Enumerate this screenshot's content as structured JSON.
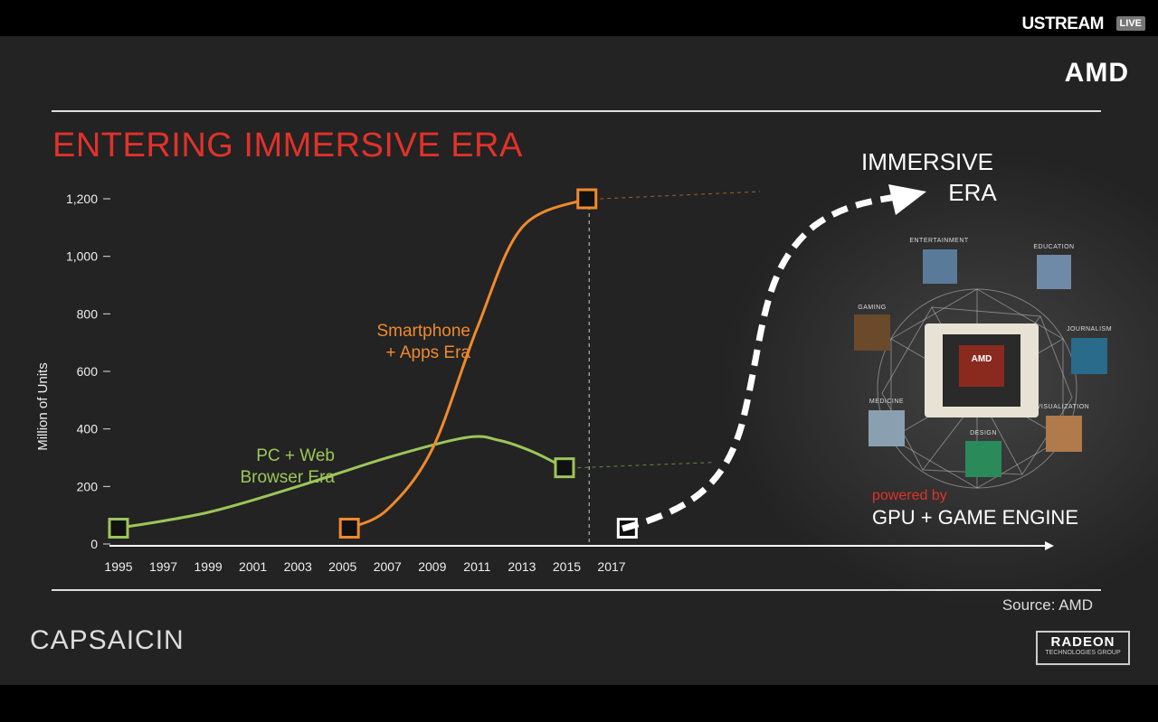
{
  "stream": {
    "brand": "USTREAM",
    "live_badge": "LIVE"
  },
  "slide": {
    "brand": "AMD",
    "title": "ENTERING IMMERSIVE ERA",
    "source": "Source:  AMD",
    "event_logo": "CAPSAICIN",
    "footer_logo": {
      "line1": "RADEON",
      "line2": "TECHNOLOGIES GROUP"
    },
    "immersive_line1": "IMMERSIVE",
    "immersive_line2": "ERA",
    "powered_by": "powered by",
    "engine": "GPU + GAME ENGINE",
    "categories": [
      "ENTERTAINMENT",
      "EDUCATION",
      "GAMING",
      "JOURNALISM",
      "MEDICINE",
      "VISUALIZATION",
      "DESIGN"
    ],
    "chip_label": "AMD"
  },
  "colors": {
    "title_red": "#e0322a",
    "orange": "#f08a2c",
    "green": "#9cc659",
    "white": "#ffffff"
  },
  "chart_data": {
    "type": "line",
    "ylabel": "Million of Units",
    "xlabel": "",
    "ylim": [
      0,
      1200
    ],
    "yticks": [
      0,
      200,
      400,
      600,
      800,
      1000,
      1200
    ],
    "yticks_labels": [
      "0",
      "200",
      "400",
      "600",
      "800",
      "1,000",
      "1,200"
    ],
    "xticks": [
      1995,
      1997,
      1999,
      2001,
      2003,
      2005,
      2007,
      2009,
      2011,
      2013,
      2015,
      2017
    ],
    "xlim": [
      1994.5,
      2018
    ],
    "series": [
      {
        "name": "PC + Web Browser Era",
        "label_line1": "PC + Web",
        "label_line2": "Browser Era",
        "color": "#9cc659",
        "points": [
          [
            1995,
            55
          ],
          [
            1999,
            110
          ],
          [
            2003,
            200
          ],
          [
            2007,
            300
          ],
          [
            2010.5,
            370
          ],
          [
            2012,
            360
          ],
          [
            2013.5,
            320
          ],
          [
            2014.9,
            265
          ]
        ]
      },
      {
        "name": "Smartphone + Apps Era",
        "label_line1": "Smartphone",
        "label_line2": "+ Apps Era",
        "color": "#f08a2c",
        "points": [
          [
            2005.3,
            55
          ],
          [
            2007,
            120
          ],
          [
            2009,
            330
          ],
          [
            2011,
            750
          ],
          [
            2013,
            1100
          ],
          [
            2015.9,
            1200
          ]
        ]
      },
      {
        "name": "Immersive Era",
        "label_line1": "",
        "label_line2": "",
        "color": "#ffffff",
        "points": [
          [
            2017.7,
            55
          ]
        ]
      }
    ]
  }
}
